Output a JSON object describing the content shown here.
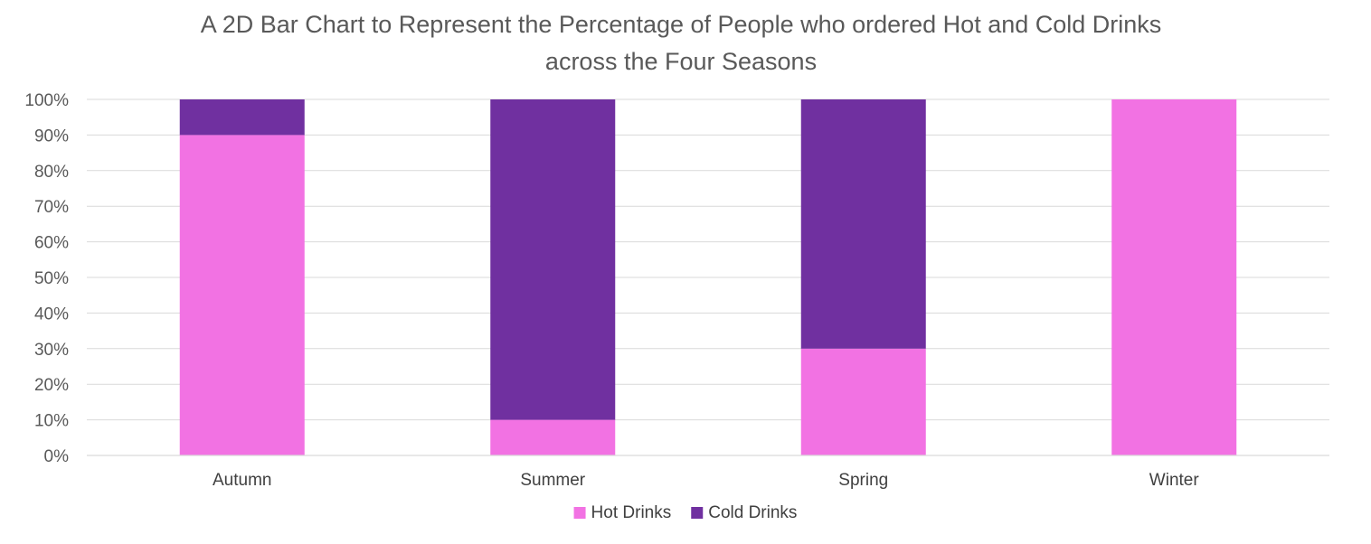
{
  "chart_data": {
    "type": "bar",
    "stacked": true,
    "title_lines": [
      "A 2D Bar Chart to Represent the Percentage of People who ordered Hot and Cold Drinks",
      "across the Four Seasons"
    ],
    "xlabel": "",
    "ylabel": "",
    "categories": [
      "Autumn",
      "Summer",
      "Spring",
      "Winter"
    ],
    "series": [
      {
        "name": "Hot Drinks",
        "values": [
          90,
          10,
          30,
          100
        ],
        "color": "#f272e3"
      },
      {
        "name": "Cold Drinks",
        "values": [
          10,
          90,
          70,
          0
        ],
        "color": "#7030a0"
      }
    ],
    "ylim": [
      0,
      100
    ],
    "y_ticks": [
      0,
      10,
      20,
      30,
      40,
      50,
      60,
      70,
      80,
      90,
      100
    ],
    "y_tick_labels": [
      "0%",
      "10%",
      "20%",
      "30%",
      "40%",
      "50%",
      "60%",
      "70%",
      "80%",
      "90%",
      "100%"
    ],
    "grid": true,
    "legend_position": "bottom"
  }
}
